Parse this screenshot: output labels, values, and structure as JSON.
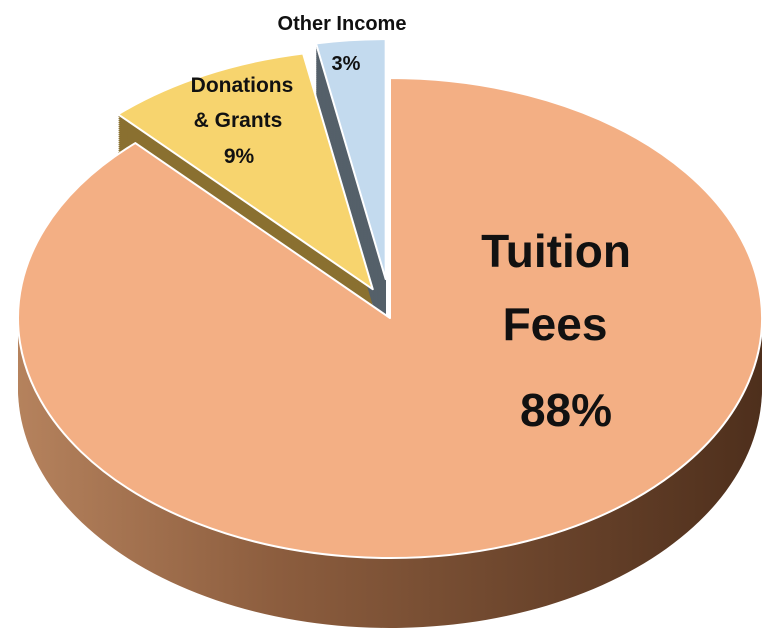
{
  "chart_data": {
    "type": "pie",
    "style": "3d-exploded",
    "categories": [
      "Tuition Fees",
      "Donations & Grants",
      "Other Income"
    ],
    "values": [
      88,
      9,
      3
    ],
    "unit": "%",
    "series": [
      {
        "values": [
          88,
          9,
          3
        ]
      }
    ],
    "colors": {
      "Tuition Fees": "#F3AF84",
      "Donations & Grants": "#F7D46E",
      "Other Income": "#C3DAEE"
    },
    "side_colors": {
      "Tuition Fees": "#8E5A3A",
      "Donations & Grants": "#8A7030",
      "Other Income": "#55606A"
    },
    "labels": [
      {
        "name_lines": [
          "Tuition",
          "Fees"
        ],
        "value_text": "88%"
      },
      {
        "name_lines": [
          "Donations",
          "& Grants"
        ],
        "value_text": "9%"
      },
      {
        "name_lines": [
          "Other Income"
        ],
        "value_text": "3%"
      }
    ]
  }
}
